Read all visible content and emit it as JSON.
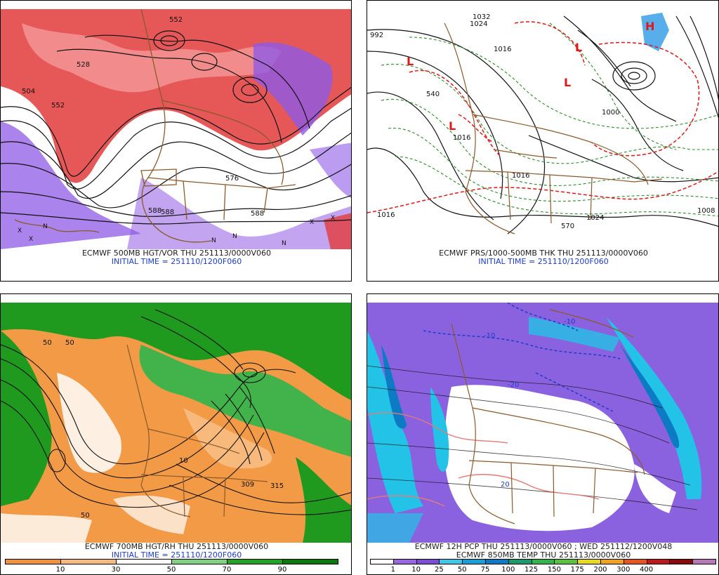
{
  "panels": [
    {
      "id": "p1",
      "line1": "ECMWF 500MB HGT/VOR THU 251113/0000V060",
      "line2": "INITIAL TIME = 251110/1200F060",
      "labels": [
        "552",
        "528",
        "504",
        "552",
        "576",
        "588",
        "588",
        "588"
      ],
      "symbols": [
        "X",
        "X",
        "N",
        "N",
        "N",
        "N",
        "X",
        "X"
      ]
    },
    {
      "id": "p2",
      "line1": "ECMWF PRS/1000-500MB THK THU 251113/0000V060",
      "line2": "INITIAL TIME = 251110/1200F060",
      "labels": [
        "1032",
        "1024",
        "992",
        "1016",
        "1000",
        "1016",
        "1016",
        "1024",
        "540",
        "570",
        "1016",
        "1008"
      ],
      "symbols": [
        "L",
        "L",
        "L",
        "L",
        "H"
      ]
    },
    {
      "id": "p3",
      "line1": "ECMWF 700MB HGT/RH THU 251113/0000V060",
      "line2": "INITIAL TIME = 251110/1200F060",
      "labels": [
        "309",
        "315",
        "50",
        "50",
        "50",
        "10"
      ],
      "colorbar": {
        "colors": [
          "#f0923c",
          "#f7b97c",
          "#ffffff",
          "#7fd27f",
          "#22a322",
          "#0b7a0b"
        ],
        "labels": [
          "10",
          "30",
          "50",
          "70",
          "90"
        ]
      }
    },
    {
      "id": "p4",
      "line1": "ECMWF 12H PCP THU 251113/0000V060 ; WED 251112/1200V048",
      "line2": "ECMWF 850MB TEMP THU 251113/0000V060",
      "labels": [
        "-10",
        "-10",
        "-20",
        "20"
      ],
      "colorbar": {
        "colors": [
          "#ffffff",
          "#9a66e0",
          "#7a4fd6",
          "#3ec7e8",
          "#17a0d8",
          "#0c7bc4",
          "#1a9b6e",
          "#2fb54a",
          "#56c43e",
          "#e8d81e",
          "#f0a21e",
          "#e8541e",
          "#c01818",
          "#8a0a0a",
          "#b878b8"
        ],
        "labels": [
          "1",
          "10",
          "25",
          "50",
          "75",
          "100",
          "125",
          "150",
          "175",
          "200",
          "300",
          "400"
        ]
      }
    }
  ],
  "colors": {
    "vorticity_red": "#e23b3b",
    "vorticity_purple": "#8f5ae6",
    "thickness_green": "#2e8b2e",
    "thickness_red": "#e01818",
    "rh_orange": "#f29a46",
    "rh_green": "#1f9a1f",
    "precip_purple": "#8a62df",
    "precip_cyan": "#22c3e6",
    "border_brown": "#8b5a2b",
    "contour_black": "#111111"
  }
}
